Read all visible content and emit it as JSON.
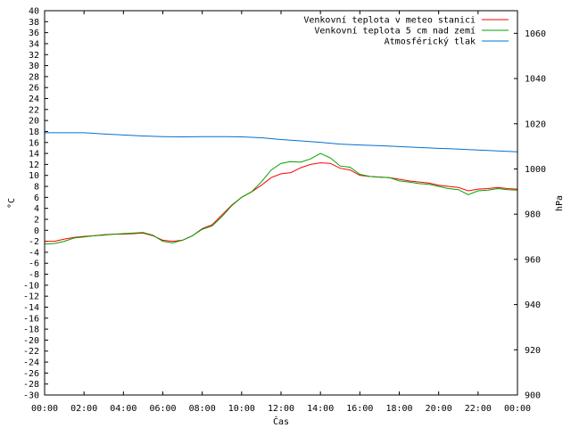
{
  "chart_data": {
    "type": "line",
    "xlabel": "Čas",
    "ylabel_left": "°C",
    "ylabel_right": "hPa",
    "x_ticks": [
      "00:00",
      "02:00",
      "04:00",
      "06:00",
      "08:00",
      "10:00",
      "12:00",
      "14:00",
      "16:00",
      "18:00",
      "20:00",
      "22:00",
      "00:00"
    ],
    "ylim_left": [
      -30,
      40
    ],
    "ylim_right": [
      900,
      1070
    ],
    "y_left_step": 2,
    "y_right_ticks": [
      900,
      920,
      940,
      960,
      980,
      1000,
      1020,
      1040,
      1060
    ],
    "x_range_hours": [
      0,
      24
    ],
    "grid": false,
    "legend_position": "top-right",
    "series": [
      {
        "name": "Venkovní teplota v meteo stanici",
        "color": "#ff0000",
        "axis": "left",
        "x": [
          0,
          0.5,
          1,
          1.5,
          2,
          2.5,
          3,
          3.5,
          4,
          4.5,
          5,
          5.5,
          6,
          6.5,
          7,
          7.5,
          8,
          8.5,
          9,
          9.5,
          10,
          10.5,
          11,
          11.5,
          12,
          12.5,
          13,
          13.5,
          14,
          14.5,
          15,
          15.5,
          16,
          16.5,
          17,
          17.5,
          18,
          18.5,
          19,
          19.5,
          20,
          20.5,
          21,
          21.5,
          22,
          22.5,
          23,
          23.5,
          24
        ],
        "y": [
          -2,
          -2,
          -1.6,
          -1.3,
          -1.1,
          -1,
          -0.8,
          -0.7,
          -0.7,
          -0.6,
          -0.5,
          -1,
          -1.8,
          -2,
          -1.8,
          -1,
          0.3,
          1,
          2.8,
          4.6,
          6,
          7,
          8.2,
          9.6,
          10.3,
          10.5,
          11.4,
          12,
          12.3,
          12.2,
          11.3,
          11,
          10,
          9.8,
          9.7,
          9.6,
          9.3,
          9,
          8.8,
          8.6,
          8.2,
          8,
          7.8,
          7.2,
          7.5,
          7.6,
          7.8,
          7.6,
          7.5
        ]
      },
      {
        "name": "Venkovní teplota 5 cm nad zemí",
        "color": "#00a000",
        "axis": "left",
        "x": [
          0,
          0.5,
          1,
          1.5,
          2,
          2.5,
          3,
          3.5,
          4,
          4.5,
          5,
          5.5,
          6,
          6.5,
          7,
          7.5,
          8,
          8.5,
          9,
          9.5,
          10,
          10.5,
          11,
          11.5,
          12,
          12.5,
          13,
          13.5,
          14,
          14.5,
          15,
          15.5,
          16,
          16.5,
          17,
          17.5,
          18,
          18.5,
          19,
          19.5,
          20,
          20.5,
          21,
          21.5,
          22,
          22.5,
          23,
          23.5,
          24
        ],
        "y": [
          -2.5,
          -2.4,
          -2,
          -1.4,
          -1.2,
          -1,
          -0.9,
          -0.7,
          -0.6,
          -0.5,
          -0.4,
          -0.9,
          -2,
          -2.3,
          -1.8,
          -1,
          0.2,
          0.8,
          2.5,
          4.5,
          6,
          7,
          8.8,
          11,
          12.2,
          12.5,
          12.4,
          13,
          14,
          13.2,
          11.7,
          11.5,
          10.2,
          9.8,
          9.7,
          9.6,
          9,
          8.8,
          8.5,
          8.4,
          8,
          7.6,
          7.4,
          6.5,
          7.2,
          7.3,
          7.6,
          7.4,
          7.3
        ]
      },
      {
        "name": "Atmosférický tlak",
        "color": "#0070d0",
        "axis": "right",
        "x": [
          0,
          1,
          2,
          3,
          4,
          5,
          6,
          7,
          8,
          9,
          10,
          11,
          12,
          13,
          14,
          15,
          16,
          17,
          18,
          19,
          20,
          21,
          22,
          23,
          24
        ],
        "y": [
          1016,
          1016,
          1016,
          1015.5,
          1015,
          1014.6,
          1014.3,
          1014.2,
          1014.3,
          1014.3,
          1014.2,
          1013.8,
          1013,
          1012.4,
          1011.8,
          1011,
          1010.6,
          1010.3,
          1009.9,
          1009.5,
          1009.1,
          1008.8,
          1008.4,
          1008,
          1007.6
        ]
      }
    ]
  }
}
